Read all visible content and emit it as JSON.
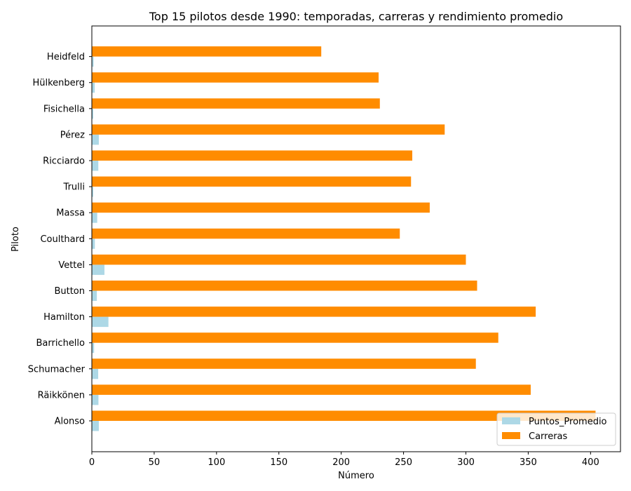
{
  "chart_data": {
    "type": "bar",
    "orientation": "horizontal",
    "title": "Top 15 pilotos desde 1990: temporadas, carreras y rendimiento promedio",
    "xlabel": "Número",
    "ylabel": "Piloto",
    "xlim": [
      0,
      424
    ],
    "xticks": [
      0,
      50,
      100,
      150,
      200,
      250,
      300,
      350,
      400
    ],
    "grid": false,
    "legend_position": "bottom-right",
    "categories": [
      "Alonso",
      "Räikkönen",
      "Schumacher",
      "Barrichello",
      "Hamilton",
      "Button",
      "Vettel",
      "Coulthard",
      "Massa",
      "Trulli",
      "Ricciardo",
      "Pérez",
      "Fisichella",
      "Hülkenberg",
      "Heidfeld"
    ],
    "series": [
      {
        "name": "Puntos_Promedio",
        "color": "#add8e6",
        "values": [
          5.6,
          5.3,
          5.1,
          1.8,
          13.3,
          4.0,
          10.1,
          2.4,
          4.3,
          1.1,
          5.2,
          5.6,
          1.1,
          2.3,
          1.4
        ]
      },
      {
        "name": "Carreras",
        "color": "#ff8c00",
        "values": [
          404,
          352,
          308,
          326,
          356,
          309,
          300,
          247,
          271,
          256,
          257,
          283,
          231,
          230,
          184
        ]
      }
    ]
  }
}
